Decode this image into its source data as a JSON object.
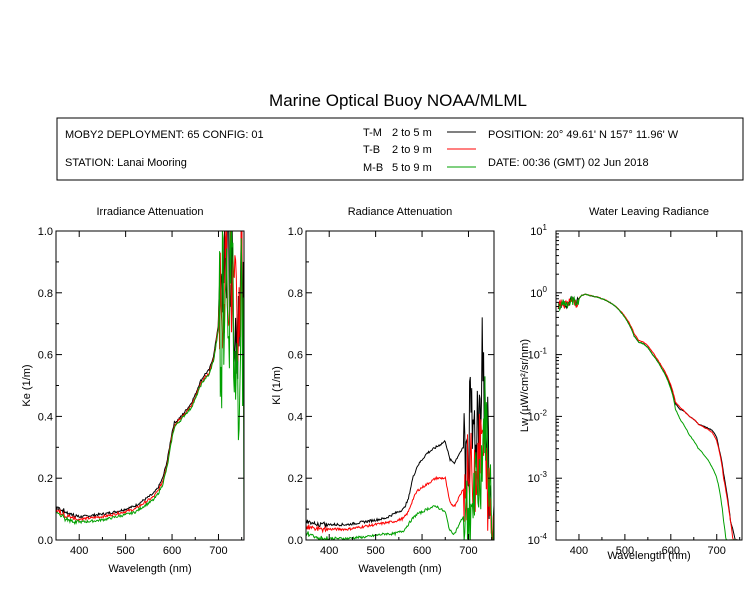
{
  "figure_title": "Marine Optical Buoy NOAA/MLML",
  "info": {
    "deployment": "MOBY2 DEPLOYMENT: 65 CONFIG: 01",
    "station": "STATION: Lanai Mooring",
    "position": "POSITION: 20° 49.61' N   157° 11.96' W",
    "date": "DATE: 00:36 (GMT) 02 Jun 2018",
    "legend": [
      {
        "code": "T-M",
        "range": "2 to 5  m",
        "color": "#000000"
      },
      {
        "code": "T-B",
        "range": "2 to 9  m",
        "color": "#ff0000"
      },
      {
        "code": "M-B",
        "range": "5 to 9  m",
        "color": "#00a000"
      }
    ]
  },
  "chart_data": [
    {
      "type": "line",
      "title": "Irradiance Attenuation",
      "xlabel": "Wavelength (nm)",
      "ylabel": "Ke  (1/m)",
      "xlim": [
        350,
        755
      ],
      "ylim": [
        0,
        1
      ],
      "xticks": [
        400,
        500,
        600,
        700
      ],
      "xtick_labels": [
        "400",
        "500",
        "600",
        "700"
      ],
      "yticks": [
        0,
        0.2,
        0.4,
        0.6,
        0.8,
        1.0
      ],
      "ytick_labels": [
        "0.0",
        "0.2",
        "0.4",
        "0.6",
        "0.8",
        "1.0"
      ],
      "x": [
        350,
        360,
        370,
        380,
        390,
        400,
        420,
        440,
        460,
        480,
        500,
        520,
        540,
        560,
        570,
        580,
        590,
        600,
        605,
        610,
        620,
        630,
        640,
        650,
        660,
        670,
        680,
        690,
        700,
        705,
        710,
        715,
        720,
        725,
        730,
        735,
        740,
        745,
        750,
        755
      ],
      "series": [
        {
          "name": "T-M",
          "color": "#000000",
          "values": [
            0.11,
            0.1,
            0.09,
            0.085,
            0.08,
            0.075,
            0.078,
            0.082,
            0.086,
            0.092,
            0.1,
            0.11,
            0.13,
            0.15,
            0.17,
            0.2,
            0.26,
            0.35,
            0.38,
            0.385,
            0.4,
            0.42,
            0.44,
            0.47,
            0.51,
            0.535,
            0.55,
            0.6,
            0.7,
            0.75,
            0.85,
            0.98,
            0.95,
            0.9,
            0.85,
            0.75,
            0.65,
            0.9,
            1.0,
            0.5
          ],
          "noise_from_nm": 700,
          "noise_amp": 0.25
        },
        {
          "name": "T-B",
          "color": "#ff0000",
          "values": [
            0.1,
            0.09,
            0.08,
            0.075,
            0.07,
            0.068,
            0.07,
            0.074,
            0.078,
            0.085,
            0.092,
            0.1,
            0.12,
            0.14,
            0.16,
            0.19,
            0.25,
            0.34,
            0.37,
            0.38,
            0.395,
            0.415,
            0.43,
            0.46,
            0.5,
            0.525,
            0.54,
            0.59,
            0.69,
            0.74,
            0.84,
            0.97,
            0.93,
            0.88,
            0.8,
            0.72,
            0.6,
            0.8,
            0.95,
            0.4
          ],
          "noise_from_nm": 700,
          "noise_amp": 0.25
        },
        {
          "name": "M-B",
          "color": "#00a000",
          "values": [
            0.09,
            0.08,
            0.07,
            0.065,
            0.06,
            0.058,
            0.06,
            0.063,
            0.068,
            0.075,
            0.082,
            0.09,
            0.11,
            0.13,
            0.15,
            0.18,
            0.24,
            0.33,
            0.365,
            0.375,
            0.39,
            0.41,
            0.425,
            0.455,
            0.495,
            0.52,
            0.535,
            0.585,
            0.68,
            0.73,
            0.83,
            0.96,
            0.9,
            0.85,
            0.75,
            0.65,
            0.45,
            0.7,
            0.9,
            0.3
          ],
          "noise_from_nm": 700,
          "noise_amp": 0.35
        }
      ]
    },
    {
      "type": "line",
      "title": "Radiance Attenuation",
      "xlabel": "Wavelength (nm)",
      "ylabel": "Kl  (1/m)",
      "xlim": [
        350,
        755
      ],
      "ylim": [
        0,
        1
      ],
      "xticks": [
        400,
        500,
        600,
        700
      ],
      "xtick_labels": [
        "400",
        "500",
        "600",
        "700"
      ],
      "yticks": [
        0,
        0.2,
        0.4,
        0.6,
        0.8,
        1.0
      ],
      "ytick_labels": [
        "0.0",
        "0.2",
        "0.4",
        "0.6",
        "0.8",
        "1.0"
      ],
      "x": [
        350,
        360,
        370,
        380,
        400,
        420,
        440,
        460,
        480,
        500,
        520,
        540,
        560,
        570,
        580,
        590,
        600,
        610,
        620,
        630,
        640,
        650,
        660,
        670,
        680,
        690,
        700,
        710,
        720,
        725,
        730,
        735,
        740,
        745,
        750,
        755
      ],
      "series": [
        {
          "name": "T-M",
          "color": "#000000",
          "values": [
            0.06,
            0.055,
            0.05,
            0.05,
            0.05,
            0.05,
            0.05,
            0.055,
            0.06,
            0.065,
            0.07,
            0.085,
            0.1,
            0.13,
            0.2,
            0.24,
            0.26,
            0.28,
            0.29,
            0.3,
            0.31,
            0.32,
            0.26,
            0.25,
            0.28,
            0.3,
            0.32,
            0.35,
            0.4,
            0.45,
            0.7,
            0.4,
            0.3,
            0.2,
            0.05,
            0.0
          ],
          "noise_from_nm": 690,
          "noise_amp": 0.2
        },
        {
          "name": "T-B",
          "color": "#ff0000",
          "values": [
            0.045,
            0.04,
            0.035,
            0.035,
            0.035,
            0.035,
            0.035,
            0.04,
            0.045,
            0.05,
            0.055,
            0.06,
            0.07,
            0.09,
            0.13,
            0.16,
            0.17,
            0.18,
            0.19,
            0.2,
            0.2,
            0.2,
            0.12,
            0.11,
            0.14,
            0.17,
            0.2,
            0.22,
            0.25,
            0.28,
            0.35,
            0.25,
            0.2,
            0.1,
            0.02,
            0.0
          ],
          "noise_from_nm": 690,
          "noise_amp": 0.15
        },
        {
          "name": "M-B",
          "color": "#00a000",
          "values": [
            0.025,
            0.02,
            0.01,
            0.005,
            0.005,
            0.005,
            0.005,
            0.008,
            0.01,
            0.015,
            0.02,
            0.02,
            0.03,
            0.05,
            0.07,
            0.085,
            0.09,
            0.1,
            0.105,
            0.11,
            0.1,
            0.09,
            0.03,
            0.02,
            0.05,
            0.08,
            0.1,
            0.12,
            0.15,
            0.2,
            0.3,
            0.4,
            0.35,
            0.2,
            0.05,
            0.0
          ],
          "noise_from_nm": 690,
          "noise_amp": 0.15
        }
      ]
    },
    {
      "type": "line",
      "title": "Water Leaving Radiance",
      "xlabel": "Wavelength (nm)",
      "ylabel": "Lw  (µW/cm²/sr/nm)",
      "yscale": "log",
      "xlim": [
        350,
        755
      ],
      "ylim": [
        0.0001,
        10
      ],
      "xticks": [
        400,
        500,
        600,
        700
      ],
      "xtick_labels": [
        "400",
        "500",
        "600",
        "700"
      ],
      "yticks": [
        0.0001,
        0.001,
        0.01,
        0.1,
        1,
        10
      ],
      "ytick_base": "10",
      "ytick_exponents": [
        "-4",
        "-3",
        "-2",
        "-1",
        "0",
        "1"
      ],
      "x": [
        355,
        365,
        375,
        385,
        395,
        405,
        415,
        425,
        440,
        460,
        480,
        500,
        510,
        520,
        530,
        540,
        550,
        560,
        570,
        580,
        590,
        600,
        610,
        620,
        630,
        640,
        650,
        660,
        670,
        680,
        690,
        700,
        705,
        710,
        715,
        720,
        725,
        730,
        735,
        740,
        745
      ],
      "series": [
        {
          "name": "T-M",
          "color": "#000000",
          "values": [
            0.6,
            0.7,
            0.65,
            0.75,
            0.7,
            0.9,
            0.95,
            0.9,
            0.85,
            0.75,
            0.6,
            0.4,
            0.3,
            0.2,
            0.16,
            0.15,
            0.13,
            0.1,
            0.08,
            0.06,
            0.045,
            0.03,
            0.016,
            0.013,
            0.012,
            0.01,
            0.009,
            0.0075,
            0.007,
            0.0065,
            0.006,
            0.0045,
            0.003,
            0.002,
            0.0012,
            0.0007,
            0.0004,
            0.0002,
            0.00015,
            0.0001,
            0.0001
          ],
          "noise_from_nm": 0,
          "noise_amp": 0.0
        },
        {
          "name": "T-B",
          "color": "#ff0000",
          "values": [
            0.6,
            0.7,
            0.65,
            0.75,
            0.7,
            0.9,
            0.95,
            0.9,
            0.85,
            0.75,
            0.6,
            0.42,
            0.32,
            0.22,
            0.17,
            0.16,
            0.14,
            0.11,
            0.085,
            0.065,
            0.048,
            0.032,
            0.017,
            0.014,
            0.012,
            0.01,
            0.009,
            0.0075,
            0.0068,
            0.0062,
            0.0055,
            0.004,
            0.0028,
            0.0018,
            0.001,
            0.0006,
            0.00035,
            0.0002,
            0.0001,
            0.0001,
            0.0001
          ],
          "noise_from_nm": 0,
          "noise_amp": 0.0
        },
        {
          "name": "M-B",
          "color": "#00a000",
          "values": [
            0.6,
            0.7,
            0.65,
            0.75,
            0.7,
            0.9,
            0.95,
            0.9,
            0.85,
            0.75,
            0.6,
            0.4,
            0.3,
            0.2,
            0.16,
            0.15,
            0.13,
            0.1,
            0.08,
            0.06,
            0.043,
            0.028,
            0.013,
            0.009,
            0.007,
            0.005,
            0.004,
            0.003,
            0.0025,
            0.002,
            0.0015,
            0.001,
            0.0007,
            0.0004,
            0.0002,
            0.0001,
            0.0001,
            0.0001,
            0.0001,
            0.0001,
            0.0001
          ],
          "noise_from_nm": 0,
          "noise_amp": 0.0
        }
      ]
    }
  ]
}
